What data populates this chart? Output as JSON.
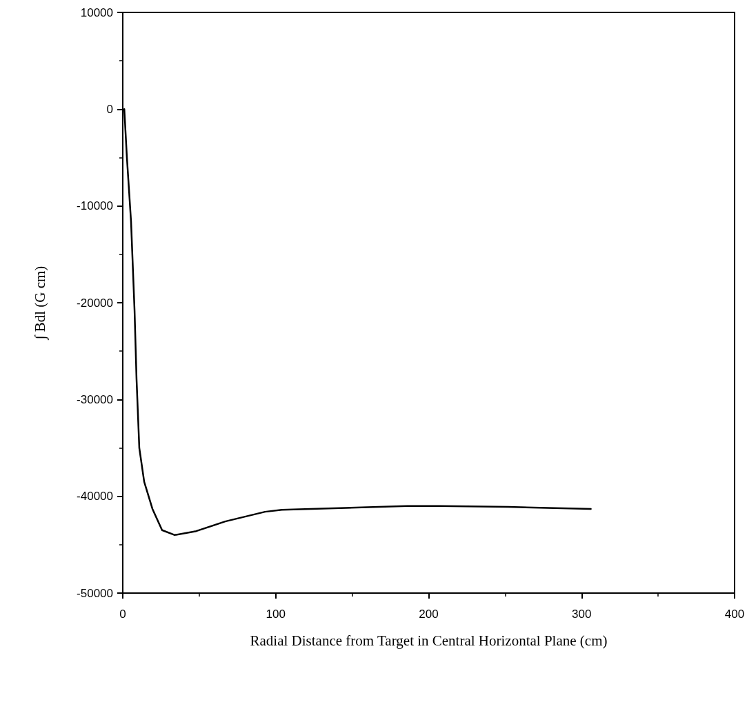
{
  "chart_data": {
    "type": "line",
    "xlabel": "Radial Distance from Target in Central Horizontal Plane (cm)",
    "ylabel": "∫ Bdl (G cm)",
    "x": [
      1,
      2.7,
      5.4,
      7.7,
      9,
      10.8,
      14,
      19.4,
      25.7,
      34,
      48,
      67,
      80,
      93,
      104,
      146,
      186,
      207,
      252,
      306
    ],
    "series": [
      {
        "color": "#000000",
        "values": [
          0,
          -5000,
          -11600,
          -20800,
          -27900,
          -35000,
          -38500,
          -41300,
          -43500,
          -44000,
          -43600,
          -42600,
          -42100,
          -41600,
          -41400,
          -41200,
          -41000,
          -41000,
          -41100,
          -41300
        ]
      }
    ],
    "xlim": [
      0,
      400
    ],
    "xticks": [
      0,
      100,
      200,
      300,
      400
    ],
    "ylim": [
      -50000,
      10000
    ],
    "yticks": [
      -50000,
      -40000,
      -30000,
      -20000,
      -10000,
      0,
      10000
    ],
    "grid": false,
    "marker": "none",
    "line_style": "solid"
  }
}
